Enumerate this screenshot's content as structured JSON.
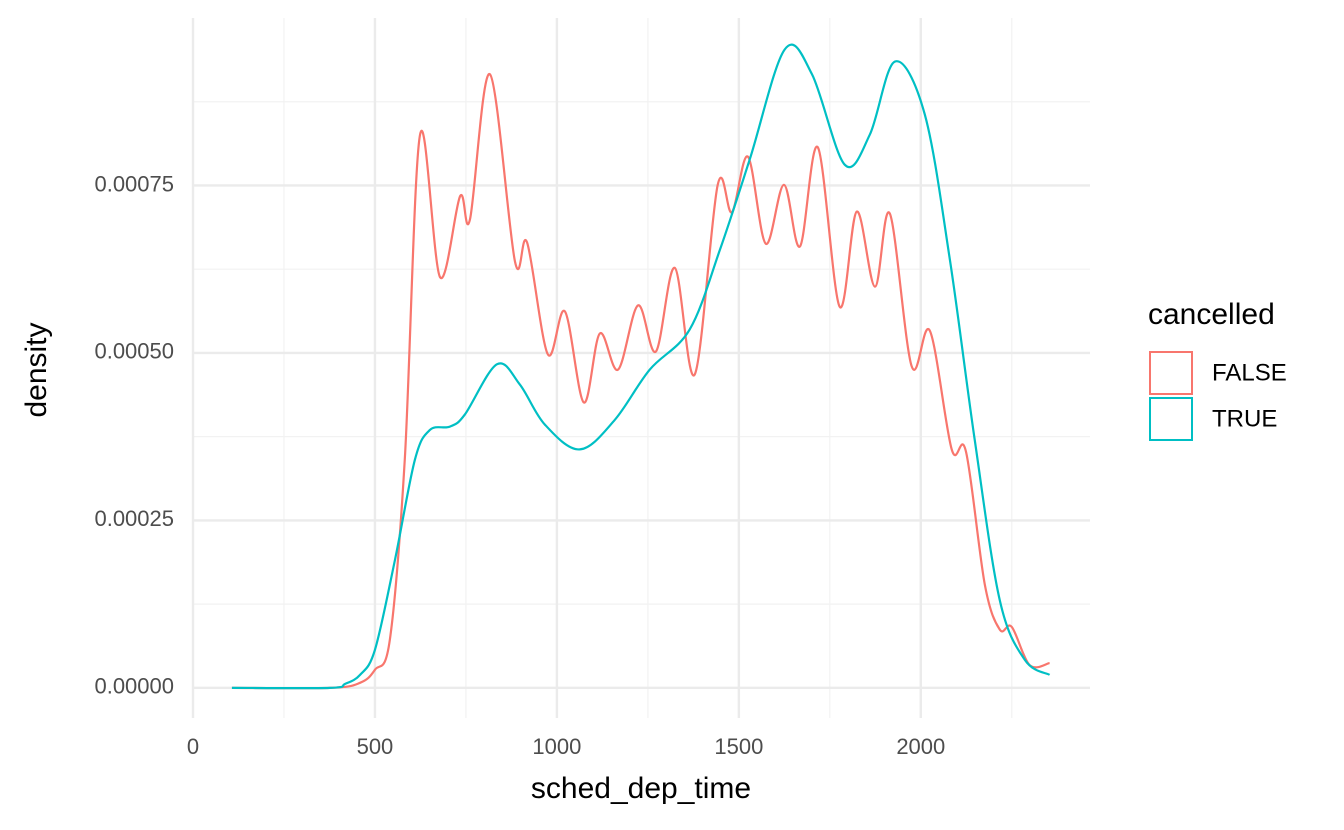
{
  "chart_data": {
    "type": "line",
    "x_label": "sched_dep_time",
    "y_label": "density",
    "legend_title": "cancelled",
    "legend_position": "right",
    "xlim": [
      0,
      2465
    ],
    "xticks": [
      0,
      500,
      1000,
      1500,
      2000
    ],
    "x_minor_grid": [
      250,
      750,
      1250,
      1750,
      2250
    ],
    "ylim": [
      -4.5e-05,
      0.001
    ],
    "yticks": [
      {
        "value": 0,
        "label": "0.00000"
      },
      {
        "value": 0.00025,
        "label": "0.00025"
      },
      {
        "value": 0.0005,
        "label": "0.00050"
      },
      {
        "value": 0.00075,
        "label": "0.00075"
      }
    ],
    "y_minor_grid": [
      0.000125,
      0.000375,
      0.000625,
      0.000875
    ],
    "grid": true,
    "series": [
      {
        "name": "FALSE",
        "color": "#F8766D",
        "x": [
          107,
          376,
          459,
          500,
          541,
          582,
          624,
          679,
          734,
          761,
          816,
          885,
          918,
          975,
          1022,
          1074,
          1118,
          1168,
          1223,
          1272,
          1324,
          1379,
          1442,
          1481,
          1525,
          1574,
          1624,
          1668,
          1717,
          1777,
          1824,
          1874,
          1915,
          1975,
          2025,
          2085,
          2124,
          2176,
          2217,
          2250,
          2299,
          2354
        ],
        "values": [
          0,
          0,
          7.5e-06,
          2.7e-05,
          7.2e-05,
          0.000341,
          0.000826,
          0.000613,
          0.000734,
          0.000699,
          0.000916,
          0.000636,
          0.000665,
          0.000498,
          0.000562,
          0.000426,
          0.000529,
          0.000475,
          0.000571,
          0.000502,
          0.000627,
          0.000468,
          0.000751,
          0.00071,
          0.000793,
          0.000663,
          0.000751,
          0.000659,
          0.000807,
          0.000569,
          0.000711,
          0.000599,
          0.000708,
          0.00048,
          0.000533,
          0.000356,
          0.000353,
          0.000154,
          8.7e-05,
          9.1e-05,
          3.4e-05,
          3.7e-05
        ]
      },
      {
        "name": "TRUE",
        "color": "#00BFC4",
        "x": [
          107,
          376,
          418,
          459,
          500,
          555,
          610,
          651,
          706,
          747,
          835,
          898,
          967,
          1063,
          1159,
          1255,
          1365,
          1448,
          1530,
          1626,
          1701,
          1791,
          1860,
          1929,
          2011,
          2080,
          2148,
          2217,
          2286,
          2354
        ],
        "values": [
          0,
          0,
          6e-06,
          1.94e-05,
          5.68e-05,
          0.000191,
          0.000341,
          0.000385,
          0.00039,
          0.000408,
          0.000483,
          0.000453,
          0.000393,
          0.000356,
          0.0004,
          0.000475,
          0.000535,
          0.000654,
          0.000789,
          0.000953,
          0.000916,
          0.000781,
          0.000826,
          0.000935,
          0.000856,
          0.000639,
          0.000371,
          0.000131,
          4.18e-05,
          1.94e-05
        ]
      }
    ]
  }
}
